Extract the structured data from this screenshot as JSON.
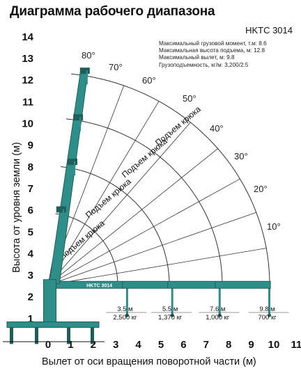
{
  "title": "Диаграмма рабочего диапазона",
  "model": "HKTC 3014",
  "specs": [
    "Максимальный грузовой момент, т.м: 8.6",
    "Максимальная высота подъема, м: 12.8",
    "Максимальный вылет, м: 9.8",
    "Грузоподъемность, кг/м: 3,200/2.5"
  ],
  "boom_label": "HKTC 3014",
  "y_axis_label": "Высота от уровня земли (м)",
  "x_axis_label": "Вылет от оси вращения поворотной части (м)",
  "y_ticks": [
    "14",
    "13",
    "12",
    "11",
    "10",
    "9",
    "8",
    "7",
    "6",
    "5",
    "4",
    "3",
    "2",
    "1"
  ],
  "x_ticks": [
    "0",
    "1",
    "2",
    "3",
    "4",
    "5",
    "6",
    "7",
    "8",
    "9",
    "10",
    "11"
  ],
  "angles": [
    "80°",
    "70°",
    "60°",
    "50°",
    "40°",
    "30°",
    "20°",
    "10°"
  ],
  "hook_label": "Подъем крюка",
  "capacities": [
    {
      "reach": "3.5 м",
      "load": "2,500 кг"
    },
    {
      "reach": "5.5 м",
      "load": "1,370 кг"
    },
    {
      "reach": "7.6 м",
      "load": "1,000 кг"
    },
    {
      "reach": "9.8 м",
      "load": "700 кг"
    }
  ],
  "colors": {
    "boom": "#2e8f8a",
    "boom_dark": "#1f5f5b",
    "grid": "#333333"
  }
}
